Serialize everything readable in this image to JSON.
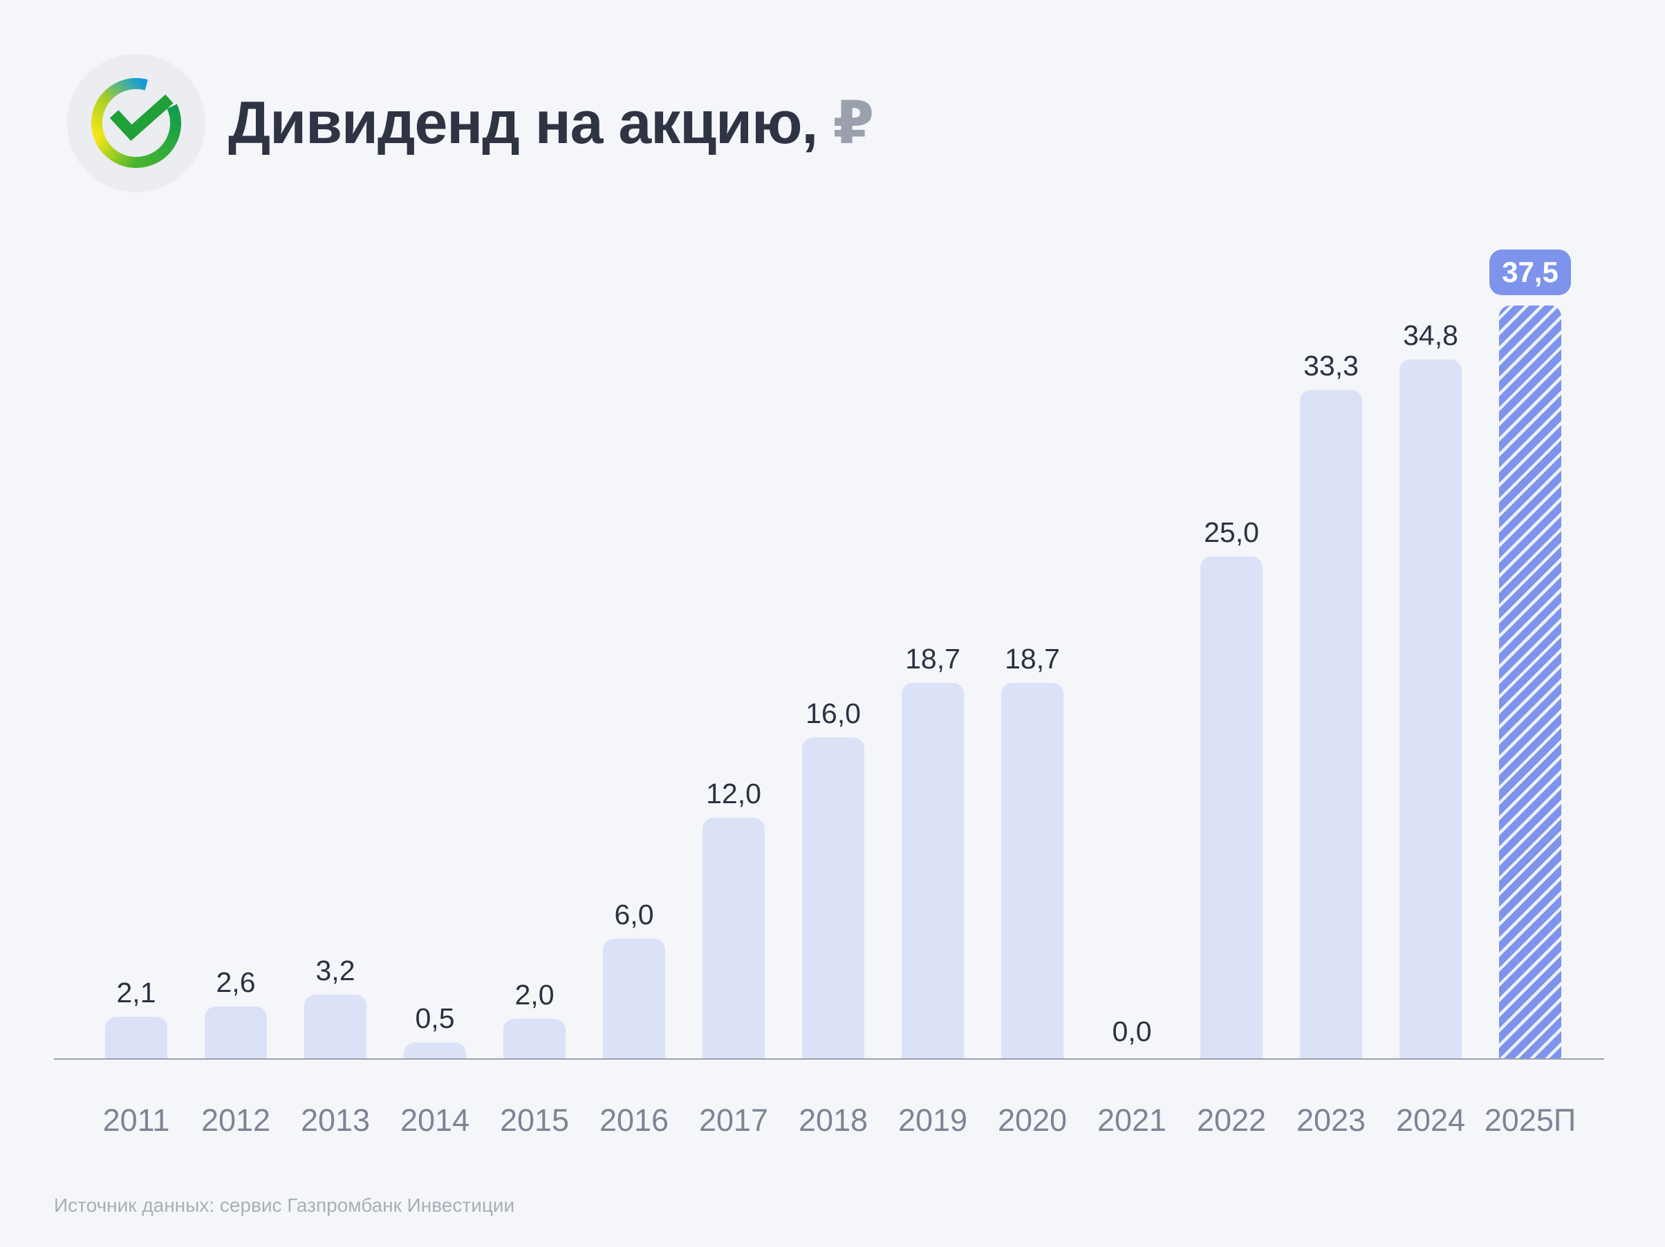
{
  "page": {
    "background": "#f4f6f9"
  },
  "header": {
    "title": "Дивиденд на акцию,",
    "currency_symbol": "₽",
    "logo_icon": "sber-check-logo"
  },
  "chart_data": {
    "type": "bar",
    "title": "Дивиденд на акцию, ₽",
    "categories": [
      "2011",
      "2012",
      "2013",
      "2014",
      "2015",
      "2016",
      "2017",
      "2018",
      "2019",
      "2020",
      "2021",
      "2022",
      "2023",
      "2024",
      "2025П"
    ],
    "values": [
      2.1,
      2.6,
      3.2,
      0.5,
      2.0,
      6.0,
      12.0,
      16.0,
      18.7,
      18.7,
      0.0,
      25.0,
      33.3,
      34.8,
      37.5
    ],
    "value_labels": [
      "2,1",
      "2,6",
      "3,2",
      "0,5",
      "2,0",
      "6,0",
      "12,0",
      "16,0",
      "18,7",
      "18,7",
      "0,0",
      "25,0",
      "33,3",
      "34,8",
      "37,5"
    ],
    "forecast_index": 14,
    "forecast_badge_label": "37,5",
    "ylim": [
      0,
      37.5
    ],
    "xlabel": "",
    "ylabel": "Дивиденд на акцию, ₽",
    "grid": false,
    "legend": "none",
    "bar_color": "#dbe1f7",
    "forecast_color": "#7d93ec",
    "label_color": "#2b3140",
    "axis_color": "#9ca0ac"
  },
  "footer": {
    "source": "Источник данных: сервис Газпромбанк Инвестиции"
  }
}
